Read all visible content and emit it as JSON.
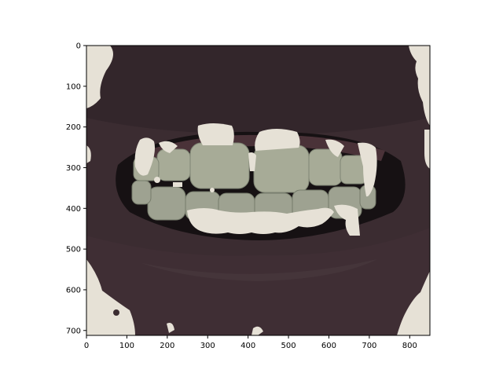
{
  "figure": {
    "image_subject": "close-up photo of an open mouth showing lips and teeth with a segmentation mask overlay",
    "x_axis": {
      "min": 0,
      "max": 850,
      "ticks": [
        0,
        100,
        200,
        300,
        400,
        500,
        600,
        700,
        800
      ]
    },
    "y_axis": {
      "min": 0,
      "max": 712,
      "inverted": true,
      "ticks": [
        0,
        100,
        200,
        300,
        400,
        500,
        600,
        700
      ]
    },
    "colors": {
      "lip": "#3a2a30",
      "lip_dark": "#241a20",
      "mouth_cavity": "#141012",
      "teeth": "#a9ad99",
      "teeth_shadow": "#7f8574",
      "gum": "#4a3238",
      "mask_overlay": "#e6e1d6",
      "axis": "#000000"
    }
  }
}
